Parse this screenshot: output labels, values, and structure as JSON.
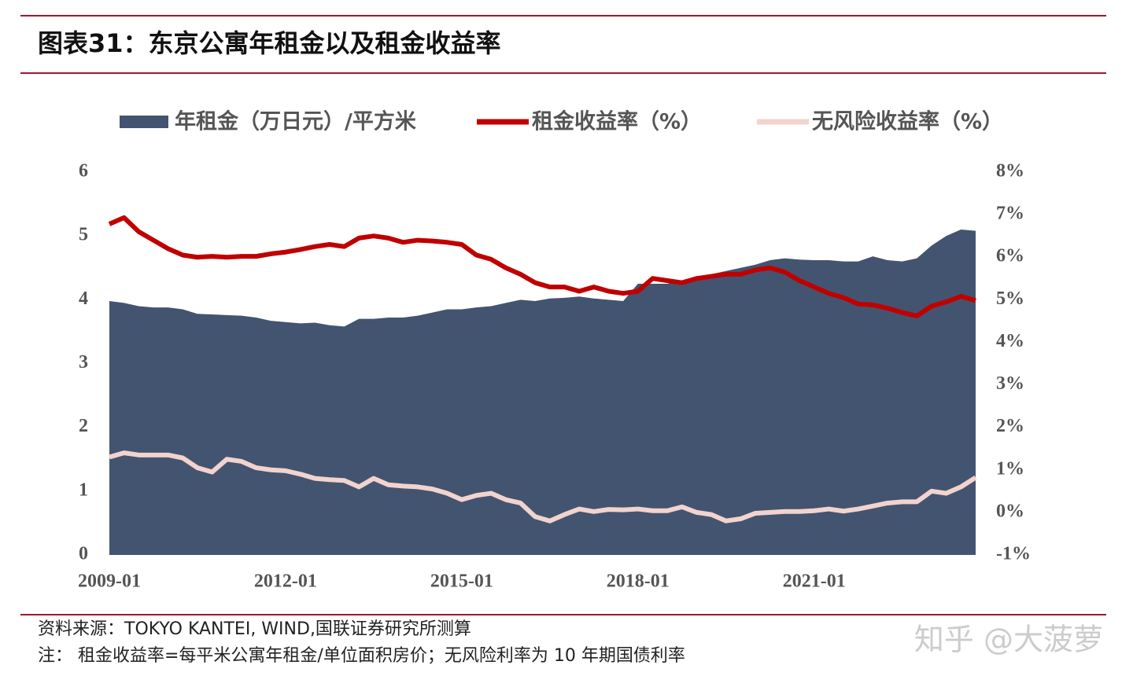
{
  "header": {
    "title": "图表31：东京公寓年租金以及租金收益率"
  },
  "chart_data": {
    "type": "area-line",
    "x": [
      "2009-01",
      "2009-04",
      "2009-07",
      "2009-10",
      "2010-01",
      "2010-04",
      "2010-07",
      "2010-10",
      "2011-01",
      "2011-04",
      "2011-07",
      "2011-10",
      "2012-01",
      "2012-04",
      "2012-07",
      "2012-10",
      "2013-01",
      "2013-04",
      "2013-07",
      "2013-10",
      "2014-01",
      "2014-04",
      "2014-07",
      "2014-10",
      "2015-01",
      "2015-04",
      "2015-07",
      "2015-10",
      "2016-01",
      "2016-04",
      "2016-07",
      "2016-10",
      "2017-01",
      "2017-04",
      "2017-07",
      "2017-10",
      "2018-01",
      "2018-04",
      "2018-07",
      "2018-10",
      "2019-01",
      "2019-04",
      "2019-07",
      "2019-10",
      "2020-01",
      "2020-04",
      "2020-07",
      "2020-10",
      "2021-01",
      "2021-04",
      "2021-07",
      "2021-10",
      "2022-01",
      "2022-04",
      "2022-07",
      "2022-10",
      "2023-01",
      "2023-04",
      "2023-07",
      "2023-10"
    ],
    "xticks": [
      "2009-01",
      "2012-01",
      "2015-01",
      "2018-01",
      "2021-01"
    ],
    "series": [
      {
        "name": "年租金（万日元）/平方米",
        "color": "#435470",
        "kind": "area",
        "values": [
          3.98,
          3.95,
          3.9,
          3.88,
          3.88,
          3.85,
          3.78,
          3.77,
          3.76,
          3.75,
          3.72,
          3.67,
          3.65,
          3.63,
          3.64,
          3.6,
          3.58,
          3.7,
          3.7,
          3.72,
          3.72,
          3.75,
          3.8,
          3.85,
          3.85,
          3.88,
          3.9,
          3.95,
          4.0,
          3.98,
          4.02,
          4.03,
          4.05,
          4.02,
          4.0,
          3.98,
          4.25,
          4.25,
          4.25,
          4.3,
          4.35,
          4.4,
          4.45,
          4.5,
          4.55,
          4.62,
          4.65,
          4.63,
          4.62,
          4.62,
          4.6,
          4.6,
          4.68,
          4.62,
          4.6,
          4.65,
          4.85,
          5.0,
          5.1,
          5.08
        ]
      },
      {
        "name": "租金收益率（%）",
        "color": "#c00000",
        "kind": "line",
        "axis": "y2",
        "values": [
          6.78,
          6.93,
          6.6,
          6.4,
          6.2,
          6.05,
          6.0,
          6.02,
          6.0,
          6.02,
          6.02,
          6.08,
          6.12,
          6.18,
          6.25,
          6.3,
          6.25,
          6.45,
          6.5,
          6.45,
          6.35,
          6.4,
          6.38,
          6.35,
          6.3,
          6.05,
          5.95,
          5.75,
          5.6,
          5.4,
          5.3,
          5.3,
          5.2,
          5.3,
          5.2,
          5.15,
          5.2,
          5.5,
          5.45,
          5.4,
          5.5,
          5.55,
          5.6,
          5.6,
          5.7,
          5.75,
          5.65,
          5.45,
          5.3,
          5.15,
          5.05,
          4.9,
          4.88,
          4.8,
          4.7,
          4.62,
          4.85,
          4.95,
          5.08,
          4.98
        ]
      },
      {
        "name": "无风险收益率（%）",
        "color": "#f2d3ce",
        "kind": "line",
        "axis": "y2",
        "values": [
          1.3,
          1.4,
          1.35,
          1.35,
          1.35,
          1.28,
          1.05,
          0.95,
          1.25,
          1.2,
          1.05,
          1.0,
          0.98,
          0.9,
          0.8,
          0.77,
          0.75,
          0.6,
          0.8,
          0.65,
          0.62,
          0.6,
          0.55,
          0.45,
          0.3,
          0.4,
          0.45,
          0.3,
          0.22,
          -0.1,
          -0.2,
          -0.05,
          0.08,
          0.02,
          0.07,
          0.06,
          0.08,
          0.04,
          0.04,
          0.13,
          0.0,
          -0.05,
          -0.2,
          -0.15,
          -0.02,
          0.0,
          0.02,
          0.02,
          0.04,
          0.08,
          0.03,
          0.08,
          0.15,
          0.22,
          0.25,
          0.25,
          0.5,
          0.45,
          0.6,
          0.82
        ]
      }
    ],
    "ylim": [
      0,
      6
    ],
    "yticks": [
      0,
      1,
      2,
      3,
      4,
      5,
      6
    ],
    "y2lim": [
      -1,
      8
    ],
    "y2ticks": [
      {
        "value": -1,
        "label": "-1%"
      },
      {
        "value": 0,
        "label": "0%"
      },
      {
        "value": 1,
        "label": "1%"
      },
      {
        "value": 2,
        "label": "2%"
      },
      {
        "value": 3,
        "label": "3%"
      },
      {
        "value": 4,
        "label": "4%"
      },
      {
        "value": 5,
        "label": "5%"
      },
      {
        "value": 6,
        "label": "6%"
      },
      {
        "value": 7,
        "label": "7%"
      },
      {
        "value": 8,
        "label": "8%"
      }
    ],
    "legend": "top"
  },
  "footer": {
    "source": "资料来源：TOKYO KANTEI, WIND,国联证券研究所测算",
    "note": "注：  租金收益率=每平米公寓年租金/单位面积房价；无风险利率为 10 年期国债利率",
    "watermark": "知乎 @大菠萝"
  }
}
